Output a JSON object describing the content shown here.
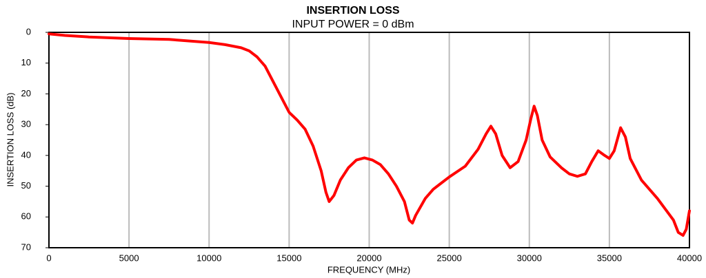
{
  "chart_data": {
    "type": "line",
    "title": "INSERTION LOSS",
    "subtitle": "INPUT POWER = 0 dBm",
    "x_label": "FREQUENCY (MHz)",
    "y_label": "INSERTION LOSS (dB)",
    "xlim": [
      0,
      40000
    ],
    "xticks": [
      0,
      5000,
      10000,
      15000,
      20000,
      25000,
      30000,
      35000,
      40000
    ],
    "ylim": [
      0,
      70
    ],
    "yticks": [
      0,
      10,
      20,
      30,
      40,
      50,
      60,
      70
    ],
    "y_inverted": true,
    "grid": "x",
    "series": [
      {
        "name": "INSERTION LOSS",
        "color": "#ff0000",
        "x": [
          0,
          1000,
          2500,
          5000,
          7500,
          10000,
          11000,
          12000,
          12500,
          13000,
          13500,
          14000,
          14500,
          15000,
          15500,
          16000,
          16500,
          17000,
          17300,
          17500,
          17800,
          18200,
          18700,
          19200,
          19700,
          20200,
          20700,
          21200,
          21700,
          22200,
          22500,
          22700,
          22900,
          23500,
          24000,
          25000,
          26000,
          26800,
          27300,
          27600,
          27900,
          28300,
          28800,
          29300,
          29800,
          30100,
          30300,
          30500,
          30800,
          31300,
          32000,
          32500,
          33000,
          33500,
          33900,
          34300,
          34700,
          35000,
          35300,
          35700,
          36000,
          36300,
          37000,
          38000,
          39000,
          39300,
          39600,
          39800,
          40000
        ],
        "values": [
          0.5,
          1,
          1.5,
          2,
          2.3,
          3.3,
          4,
          5,
          6,
          8,
          11,
          16,
          21,
          26,
          28.5,
          31.5,
          37,
          45,
          52,
          55,
          53,
          48,
          44,
          41.5,
          40.8,
          41.5,
          43,
          46,
          50,
          55,
          61,
          62,
          59.5,
          54,
          51,
          47,
          43.5,
          38,
          33,
          30.5,
          33,
          40,
          44,
          42,
          35,
          28,
          24,
          27,
          35,
          40.5,
          44,
          46,
          46.8,
          46,
          42,
          38.5,
          40,
          41,
          38.5,
          31,
          34,
          41,
          48,
          54,
          61,
          65,
          66,
          64,
          58
        ]
      }
    ]
  }
}
